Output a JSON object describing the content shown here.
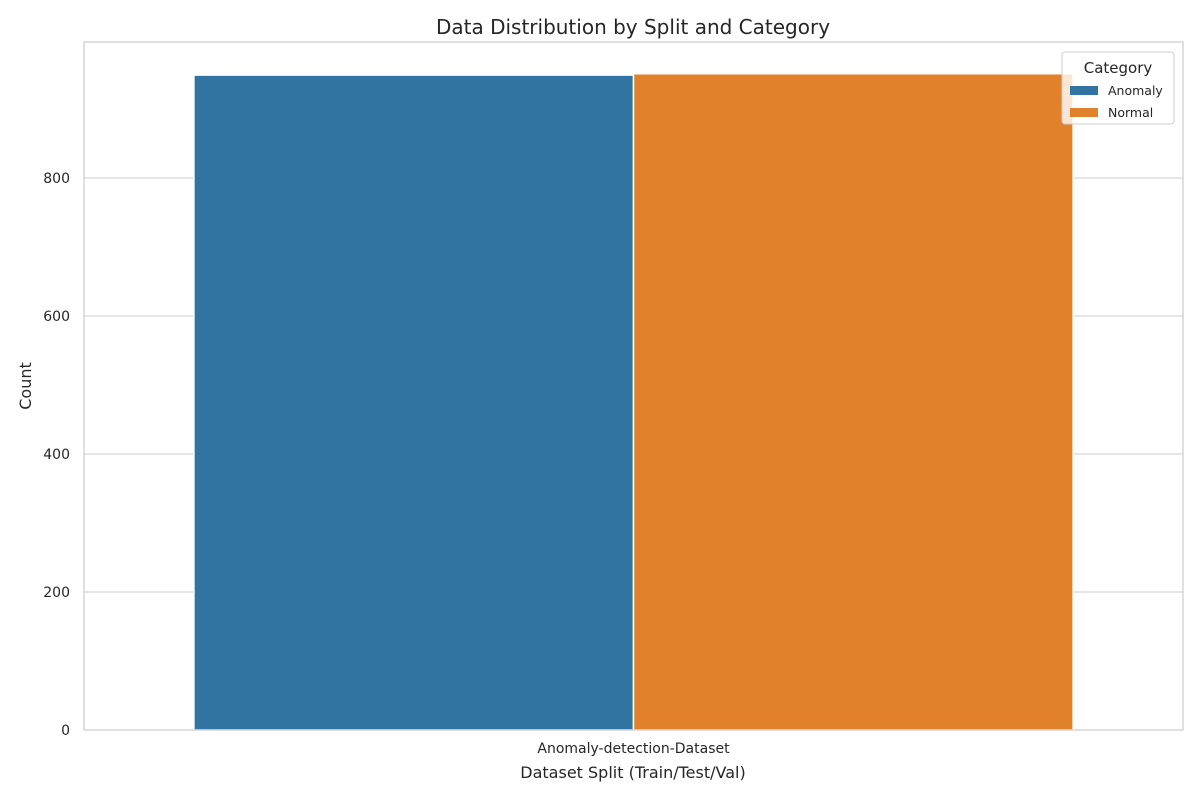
{
  "chart_data": {
    "type": "bar",
    "title": "Data Distribution by Split and Category",
    "xlabel": "Dataset Split (Train/Test/Val)",
    "ylabel": "Count",
    "categories": [
      "Anomaly-detection-Dataset"
    ],
    "series": [
      {
        "name": "Anomaly",
        "values": [
          949
        ],
        "color": "#3274a1"
      },
      {
        "name": "Normal",
        "values": [
          951
        ],
        "color": "#e1812c"
      }
    ],
    "ylim": [
      0,
      997
    ],
    "yticks": [
      0,
      200,
      400,
      600,
      800
    ],
    "grid": "horizontal",
    "legend": {
      "title": "Category",
      "placement": "top-right"
    }
  }
}
